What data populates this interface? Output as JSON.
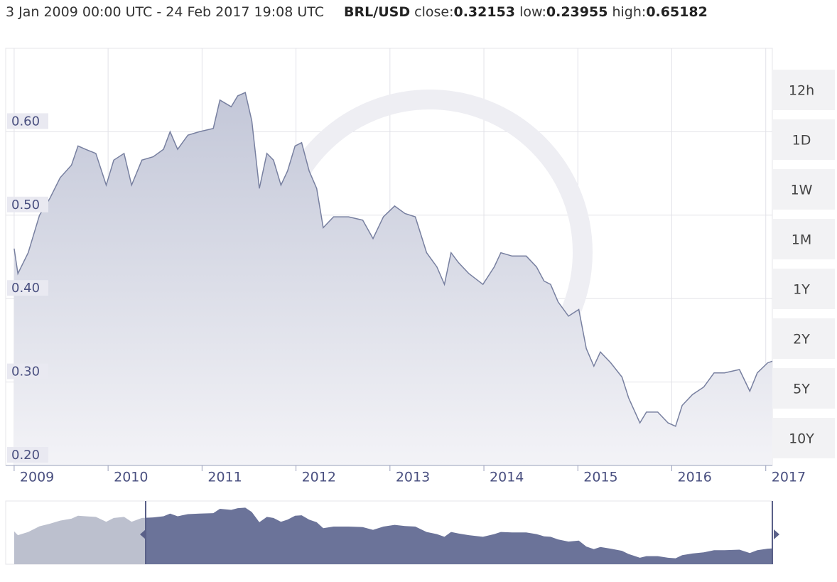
{
  "header": {
    "range": "3 Jan 2009 00:00 UTC - 24 Feb 2017 19:08 UTC",
    "pair": "BRL/USD",
    "close_label": "close:",
    "close": "0.32153",
    "low_label": "low:",
    "low": "0.23955",
    "high_label": "high:",
    "high": "0.65182"
  },
  "buttons": [
    "12h",
    "1D",
    "1W",
    "1M",
    "1Y",
    "2Y",
    "5Y",
    "10Y"
  ],
  "chart_data": {
    "type": "area",
    "series": [
      {
        "name": "BRL/USD",
        "color": "#7880a0",
        "x": [
          2009.0,
          2009.04,
          2009.15,
          2009.27,
          2009.38,
          2009.49,
          2009.61,
          2009.68,
          2009.76,
          2009.87,
          2009.98,
          2010.06,
          2010.17,
          2010.25,
          2010.36,
          2010.48,
          2010.59,
          2010.66,
          2010.74,
          2010.85,
          2010.97,
          2011.12,
          2011.19,
          2011.31,
          2011.38,
          2011.46,
          2011.53,
          2011.61,
          2011.69,
          2011.76,
          2011.84,
          2011.91,
          2011.99,
          2012.06,
          2012.14,
          2012.22,
          2012.29,
          2012.4,
          2012.56,
          2012.71,
          2012.82,
          2012.93,
          2013.05,
          2013.16,
          2013.27,
          2013.39,
          2013.5,
          2013.58,
          2013.65,
          2013.73,
          2013.84,
          2013.99,
          2014.11,
          2014.18,
          2014.3,
          2014.45,
          2014.56,
          2014.64,
          2014.71,
          2014.79,
          2014.9,
          2015.01,
          2015.09,
          2015.17,
          2015.24,
          2015.35,
          2015.47,
          2015.54,
          2015.66,
          2015.73,
          2015.85,
          2015.96,
          2016.04,
          2016.11,
          2016.22,
          2016.34,
          2016.45,
          2016.56,
          2016.72,
          2016.83,
          2016.91,
          2017.02,
          2017.07
        ],
        "values": [
          0.46,
          0.43,
          0.455,
          0.5,
          0.52,
          0.545,
          0.56,
          0.583,
          0.579,
          0.574,
          0.536,
          0.566,
          0.574,
          0.536,
          0.566,
          0.57,
          0.579,
          0.6,
          0.579,
          0.596,
          0.6,
          0.604,
          0.638,
          0.63,
          0.643,
          0.647,
          0.613,
          0.532,
          0.574,
          0.566,
          0.536,
          0.553,
          0.583,
          0.587,
          0.553,
          0.532,
          0.485,
          0.498,
          0.498,
          0.494,
          0.472,
          0.498,
          0.511,
          0.502,
          0.498,
          0.455,
          0.438,
          0.417,
          0.455,
          0.443,
          0.43,
          0.417,
          0.438,
          0.455,
          0.451,
          0.451,
          0.438,
          0.421,
          0.417,
          0.396,
          0.379,
          0.387,
          0.34,
          0.319,
          0.336,
          0.323,
          0.306,
          0.281,
          0.251,
          0.264,
          0.264,
          0.251,
          0.247,
          0.272,
          0.285,
          0.294,
          0.311,
          0.311,
          0.315,
          0.289,
          0.311,
          0.323,
          0.325
        ]
      }
    ],
    "xlim": [
      2008.91,
      2017.07
    ],
    "xticks": [
      2009,
      2010,
      2011,
      2012,
      2013,
      2014,
      2015,
      2016,
      2017
    ],
    "ylim": [
      0.2,
      0.7
    ],
    "yticks": [
      {
        "value": 0.2,
        "label": "0.20"
      },
      {
        "value": 0.3,
        "label": "0.30"
      },
      {
        "value": 0.4,
        "label": "0.40"
      },
      {
        "value": 0.5,
        "label": "0.50"
      },
      {
        "value": 0.6,
        "label": "0.60"
      }
    ],
    "grid": true
  }
}
